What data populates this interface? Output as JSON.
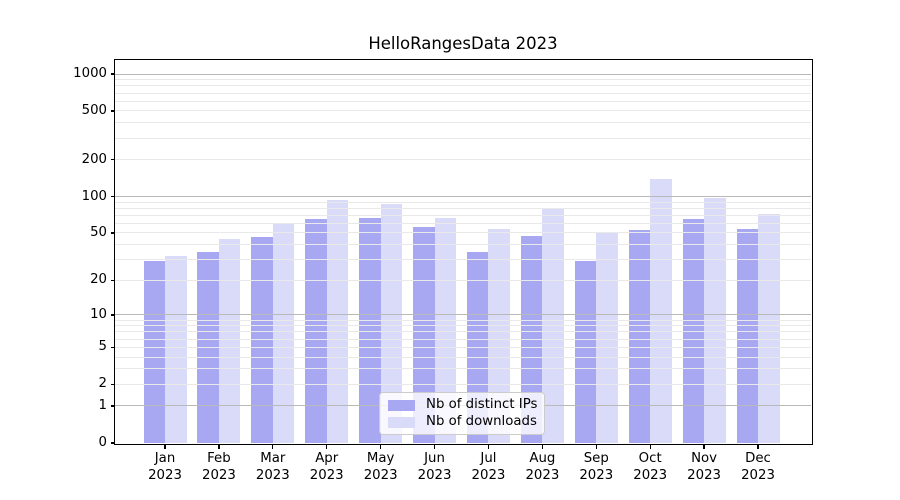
{
  "chart_data": {
    "type": "bar",
    "title": "HelloRangesData 2023",
    "year": "2023",
    "categories": [
      "Jan",
      "Feb",
      "Mar",
      "Apr",
      "May",
      "Jun",
      "Jul",
      "Aug",
      "Sep",
      "Oct",
      "Nov",
      "Dec"
    ],
    "series": [
      {
        "name": "Nb of distinct IPs",
        "color": "#a7a7f2",
        "values": [
          29,
          35,
          46,
          65,
          67,
          56,
          35,
          47,
          29,
          53,
          65,
          54
        ]
      },
      {
        "name": "Nb of downloads",
        "color": "#dadaf9",
        "values": [
          32,
          45,
          61,
          93,
          87,
          67,
          54,
          79,
          50,
          140,
          97,
          72
        ]
      }
    ],
    "y_scale": "log10(1+x)",
    "y_ticks": [
      0,
      1,
      2,
      5,
      10,
      20,
      50,
      100,
      200,
      500,
      1000
    ],
    "y_major_gridlines": [
      1,
      10,
      100,
      1000
    ],
    "y_minor_gridlines": [
      2,
      3,
      4,
      5,
      6,
      7,
      8,
      9,
      20,
      30,
      40,
      50,
      60,
      70,
      80,
      90,
      200,
      300,
      400,
      500,
      600,
      700,
      800,
      900
    ],
    "y_top": 1300,
    "xlabel": "",
    "ylabel": "",
    "grid": true,
    "legend_position": "lower center",
    "colors": {
      "background": "#ffffff",
      "major_grid": "#b9b9b9",
      "minor_grid": "#e9e9e9",
      "axis": "#000000",
      "text": "#000000",
      "legend_border": "#cccccc",
      "legend_bg": "rgba(255,255,255,0.8)"
    }
  }
}
